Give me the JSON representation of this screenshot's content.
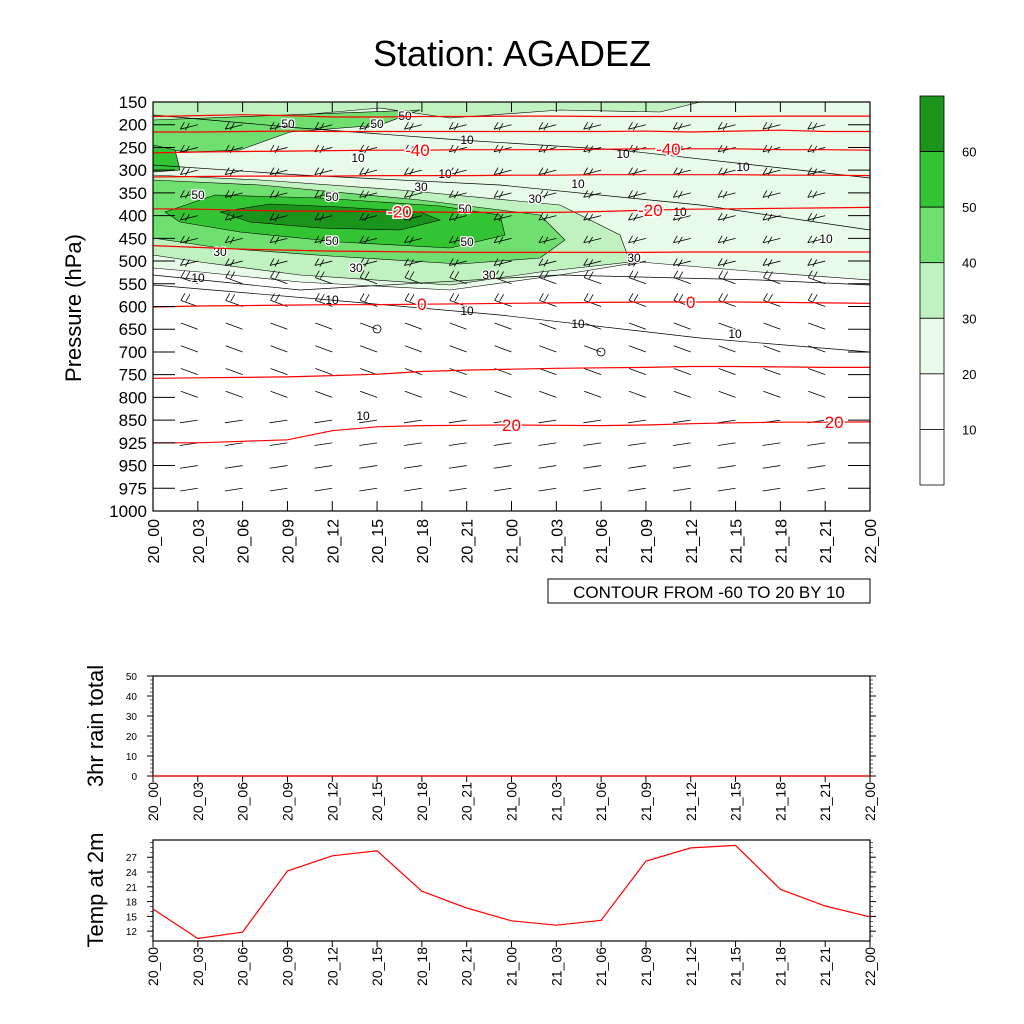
{
  "title": "Station: AGADEZ",
  "time_labels": [
    "20_00",
    "20_03",
    "20_06",
    "20_09",
    "20_12",
    "20_15",
    "20_18",
    "20_21",
    "21_00",
    "21_03",
    "21_06",
    "21_09",
    "21_12",
    "21_15",
    "21_18",
    "21_21",
    "22_00"
  ],
  "colors": {
    "axis": "#000000",
    "temp_contour": "#ff0000",
    "rh_contour": "#000000",
    "shade_levels": [
      "#ffffff",
      "#ffffff",
      "#e8fae8",
      "#c0f2c0",
      "#6fe06f",
      "#33c433",
      "#1a941a"
    ]
  },
  "chart_data": [
    {
      "type": "contour",
      "title": "Station: AGADEZ",
      "xlabel": "",
      "ylabel": "Pressure (hPa)",
      "pressure_levels": [
        150,
        200,
        250,
        300,
        350,
        400,
        450,
        500,
        550,
        600,
        650,
        700,
        750,
        800,
        850,
        925,
        950,
        975,
        1000
      ],
      "ylim": [
        1000,
        150
      ],
      "x": [
        "20_00",
        "20_03",
        "20_06",
        "20_09",
        "20_12",
        "20_15",
        "20_18",
        "20_21",
        "21_00",
        "21_03",
        "21_06",
        "21_09",
        "21_12",
        "21_15",
        "21_18",
        "21_21",
        "22_00"
      ],
      "shaded_field_levels": [
        10,
        20,
        30,
        40,
        50,
        60
      ],
      "colorbar_labels": [
        "10",
        "20",
        "30",
        "40",
        "50",
        "60"
      ],
      "temperature_contours": [
        {
          "level": -40,
          "label": "-40",
          "pressure": [
            182,
            180,
            178,
            180,
            183,
            183,
            182,
            182,
            181,
            181,
            182,
            182,
            182,
            182,
            181,
            181,
            181
          ]
        },
        {
          "level": -40,
          "label": "-40",
          "pressure": [
            216,
            216,
            215,
            214,
            215,
            215,
            215,
            215,
            215,
            215,
            215,
            214,
            216,
            214,
            212,
            215,
            215
          ]
        },
        {
          "level": -40,
          "label": "-40",
          "pressure": [
            262,
            260,
            259,
            258,
            257,
            256,
            256,
            255,
            255,
            255,
            254,
            253,
            253,
            253,
            255,
            255,
            256
          ]
        },
        {
          "level": -20,
          "label": "-20",
          "pressure": [
            315,
            314,
            313,
            313,
            313,
            312,
            312,
            312,
            311,
            311,
            310,
            310,
            310,
            310,
            311,
            311,
            312
          ]
        },
        {
          "level": -20,
          "label": "-20",
          "pressure": [
            385,
            386,
            388,
            390,
            390,
            391,
            392,
            393,
            393,
            393,
            391,
            388,
            386,
            385,
            384,
            383,
            382
          ]
        },
        {
          "level": -20,
          "label": "-20",
          "pressure": [
            466,
            470,
            474,
            476,
            478,
            479,
            480,
            481,
            481,
            481,
            481,
            481,
            480,
            480,
            480,
            480,
            480
          ]
        },
        {
          "level": 0,
          "label": "0",
          "pressure": [
            601,
            599,
            598,
            597,
            596,
            596,
            595,
            594,
            593,
            592,
            591,
            590,
            590,
            590,
            591,
            592,
            593
          ]
        },
        {
          "level": 0,
          "label": "0",
          "pressure": [
            758,
            757,
            756,
            755,
            752,
            749,
            743,
            740,
            738,
            736,
            735,
            734,
            732,
            732,
            733,
            734,
            734
          ]
        },
        {
          "level": 20,
          "label": "20",
          "pressure": [
            925,
            925,
            920,
            915,
            885,
            872,
            868,
            867,
            866,
            867,
            868,
            866,
            862,
            859,
            857,
            857,
            856
          ]
        }
      ],
      "rh_contour_labels": [
        "10",
        "30",
        "50"
      ],
      "contour_info": "CONTOUR FROM -60 TO 20 BY 10"
    },
    {
      "type": "line",
      "title": "",
      "ylabel": "3hr rain total",
      "x": [
        "20_00",
        "20_03",
        "20_06",
        "20_09",
        "20_12",
        "20_15",
        "20_18",
        "20_21",
        "21_00",
        "21_03",
        "21_06",
        "21_09",
        "21_12",
        "21_15",
        "21_18",
        "21_21",
        "22_00"
      ],
      "values": [
        0,
        0,
        0,
        0,
        0,
        0,
        0,
        0,
        0,
        0,
        0,
        0,
        0,
        0,
        0,
        0,
        0
      ],
      "yticks": [
        "0",
        "10",
        "20",
        "30",
        "40",
        "50"
      ],
      "ylim": [
        0,
        50
      ]
    },
    {
      "type": "line",
      "title": "",
      "ylabel": "Temp at 2m",
      "x": [
        "20_00",
        "20_03",
        "20_06",
        "20_09",
        "20_12",
        "20_15",
        "20_18",
        "20_21",
        "21_00",
        "21_03",
        "21_06",
        "21_09",
        "21_12",
        "21_15",
        "21_18",
        "21_21",
        "22_00"
      ],
      "values": [
        16.5,
        10.5,
        11.8,
        24.2,
        27.3,
        28.3,
        20.1,
        16.7,
        14.1,
        13.2,
        14.2,
        26.2,
        28.9,
        29.4,
        20.5,
        17.1,
        14.9
      ],
      "yticks": [
        "12",
        "15",
        "18",
        "21",
        "24",
        "27"
      ],
      "ylim": [
        10,
        30.5
      ]
    }
  ]
}
